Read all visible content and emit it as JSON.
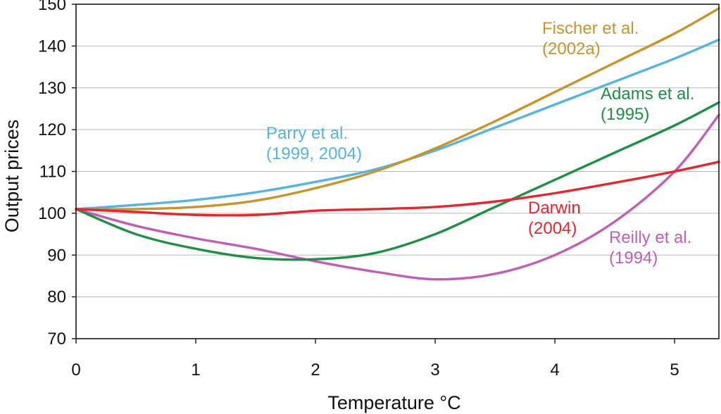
{
  "chart_data": {
    "type": "line",
    "title": "",
    "xlabel": "Temperature °C",
    "ylabel": "Output prices",
    "xlim": [
      0,
      5.37
    ],
    "ylim": [
      70,
      150
    ],
    "x_ticks": [
      "0",
      "1",
      "2",
      "3",
      "4",
      "5"
    ],
    "y_ticks": [
      "70",
      "80",
      "90",
      "100",
      "110",
      "120",
      "130",
      "140",
      "150"
    ],
    "grid": "horizontal",
    "series": [
      {
        "name": "Fischer et al. (2002a)",
        "label_lines": [
          "Fischer et al.",
          "(2002a)"
        ],
        "color": "#c8942b",
        "x": [
          0,
          0.5,
          1.0,
          1.5,
          2.0,
          2.5,
          3.0,
          3.5,
          4.0,
          4.5,
          5.0,
          5.37
        ],
        "y": [
          101,
          101,
          101.5,
          103,
          106,
          110,
          115.5,
          122,
          129,
          136,
          143,
          149
        ]
      },
      {
        "name": "Parry et al. (1999, 2004)",
        "label_lines": [
          "Parry et al.",
          "(1999, 2004)"
        ],
        "color": "#56b3e3",
        "x": [
          0,
          0.5,
          1.0,
          1.5,
          2.0,
          2.5,
          3.0,
          3.5,
          4.0,
          4.5,
          5.0,
          5.37
        ],
        "y": [
          101,
          102,
          103.2,
          105,
          107.5,
          110.5,
          115,
          120.5,
          126,
          131.5,
          137,
          141.5
        ]
      },
      {
        "name": "Adams et al. (1995)",
        "label_lines": [
          "Adams et al.",
          "(1995)"
        ],
        "color": "#1f8f45",
        "x": [
          0,
          0.5,
          1.0,
          1.5,
          2.0,
          2.5,
          3.0,
          3.5,
          4.0,
          4.5,
          5.0,
          5.37
        ],
        "y": [
          101,
          95,
          91.5,
          89.3,
          89,
          90.5,
          95,
          101.5,
          108,
          114.5,
          121,
          126.5
        ]
      },
      {
        "name": "Darwin (2004)",
        "label_lines": [
          "Darwin",
          "(2004)"
        ],
        "color": "#e8262d",
        "x": [
          0,
          0.5,
          1.0,
          1.5,
          2.0,
          2.5,
          3.0,
          3.5,
          4.0,
          4.5,
          5.0,
          5.37
        ],
        "y": [
          101,
          100.3,
          99.6,
          99.6,
          100.6,
          101,
          101.5,
          102.8,
          104.8,
          107.3,
          110,
          112.3
        ]
      },
      {
        "name": "Reilly et al. (1994)",
        "label_lines": [
          "Reilly et al.",
          "(1994)"
        ],
        "color": "#c05fb3",
        "x": [
          0,
          0.5,
          1.0,
          1.5,
          2.0,
          2.5,
          3.0,
          3.5,
          4.0,
          4.5,
          5.0,
          5.37
        ],
        "y": [
          101,
          97,
          94,
          91.5,
          88.5,
          86,
          84.2,
          85.5,
          90,
          98,
          110,
          123.5
        ]
      }
    ]
  }
}
